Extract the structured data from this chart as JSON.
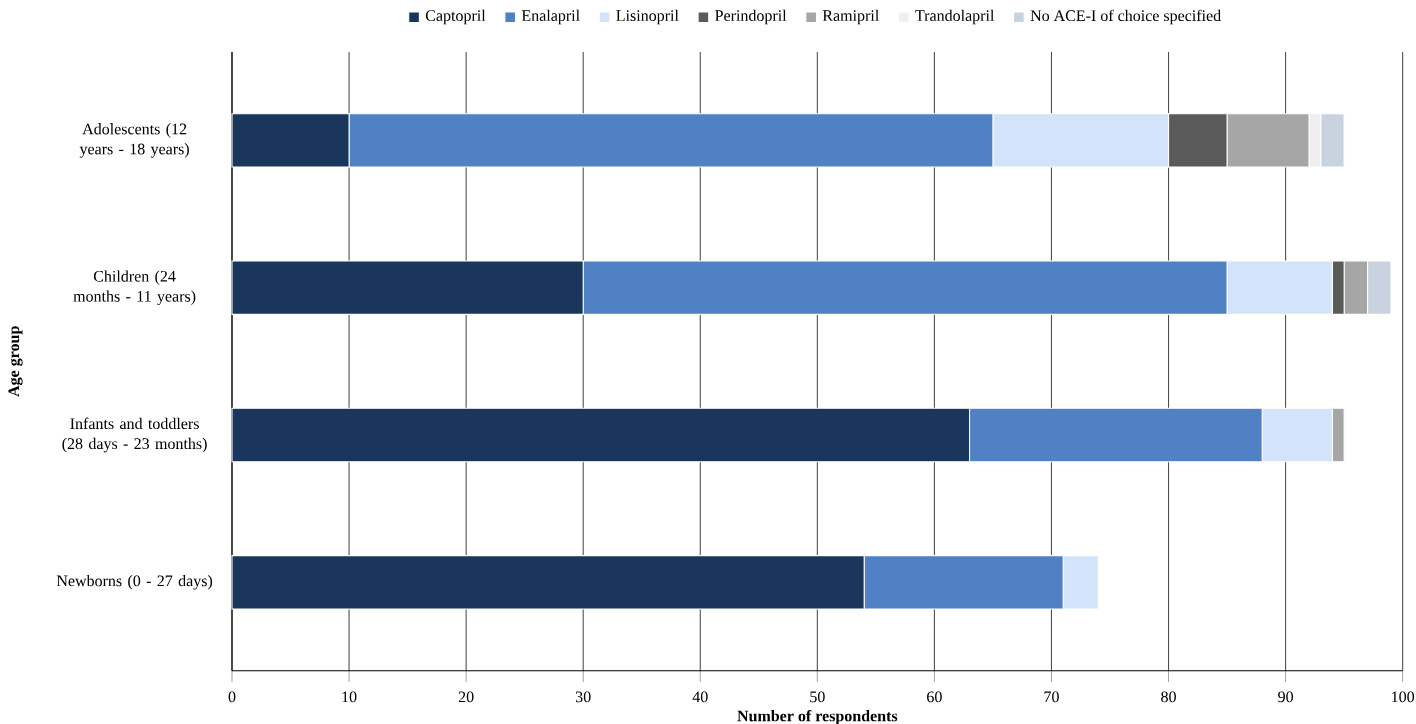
{
  "chart_data": {
    "type": "bar",
    "orientation": "horizontal",
    "stacked": true,
    "xlabel": "Number of respondents",
    "ylabel": "Age group",
    "categories": [
      "Adolescents (12 years - 18 years)",
      "Children (24 months - 11 years)",
      "Infants and toddlers (28 days - 23 months)",
      "Newborns (0 - 27 days)"
    ],
    "series": [
      {
        "name": "Captopril",
        "color": "#1a365d",
        "values": [
          10,
          30,
          63,
          54
        ]
      },
      {
        "name": "Enalapril",
        "color": "#4f81c4",
        "values": [
          55,
          55,
          25,
          17
        ]
      },
      {
        "name": "Lisinopril",
        "color": "#d3e4fa",
        "values": [
          15,
          9,
          6,
          3
        ]
      },
      {
        "name": "Perindopril",
        "color": "#5a5a5a",
        "values": [
          5,
          1,
          0,
          0
        ]
      },
      {
        "name": "Ramipril",
        "color": "#a6a6a6",
        "values": [
          7,
          2,
          1,
          0
        ]
      },
      {
        "name": "Trandolapril",
        "color": "#efefef",
        "values": [
          1,
          0,
          0,
          0
        ]
      },
      {
        "name": "No ACE-I of choice specified",
        "color": "#c9d3df",
        "values": [
          2,
          2,
          0,
          0
        ]
      }
    ],
    "xlim": [
      0,
      100
    ],
    "xticks": [
      0,
      10,
      20,
      30,
      40,
      50,
      60,
      70,
      80,
      90,
      100
    ],
    "grid": "x",
    "legend": "top"
  }
}
